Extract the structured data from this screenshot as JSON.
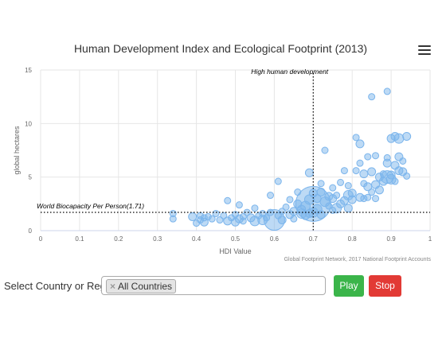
{
  "chart_data": {
    "type": "scatter",
    "title": "Human Development Index and Ecological Footprint (2013)",
    "xlabel": "HDI Value",
    "ylabel": "global hectares",
    "xlim": [
      0,
      1
    ],
    "ylim": [
      0,
      15
    ],
    "x_ticks": [
      "0",
      "0.1",
      "0.2",
      "0.3",
      "0.4",
      "0.5",
      "0.6",
      "0.7",
      "0.8",
      "0.9",
      "1"
    ],
    "y_ticks": [
      "0",
      "5",
      "10",
      "15"
    ],
    "grid": true,
    "credits": "Global Footprint Network, 2017 National Footprint Accounts",
    "reference_lines": [
      {
        "orientation": "horizontal",
        "value": 1.71,
        "label": "World Biocapacity Per Person(1.71)"
      },
      {
        "orientation": "vertical",
        "value": 0.7,
        "label": "High human development"
      }
    ],
    "series": [
      {
        "color": "#7cb5ec",
        "points": [
          [
            0.34,
            1.6,
            4
          ],
          [
            0.34,
            1.1,
            4
          ],
          [
            0.39,
            1.3,
            5
          ],
          [
            0.4,
            0.7,
            4
          ],
          [
            0.41,
            1.4,
            4
          ],
          [
            0.41,
            1.0,
            4
          ],
          [
            0.42,
            0.8,
            5
          ],
          [
            0.42,
            1.2,
            4
          ],
          [
            0.43,
            1.3,
            4
          ],
          [
            0.44,
            1.1,
            4
          ],
          [
            0.45,
            1.6,
            4
          ],
          [
            0.46,
            1.0,
            4
          ],
          [
            0.47,
            1.4,
            4
          ],
          [
            0.48,
            0.9,
            5
          ],
          [
            0.48,
            2.8,
            4
          ],
          [
            0.49,
            1.2,
            4
          ],
          [
            0.5,
            0.8,
            5
          ],
          [
            0.5,
            1.5,
            4
          ],
          [
            0.51,
            1.1,
            5
          ],
          [
            0.51,
            2.4,
            4
          ],
          [
            0.52,
            1.3,
            4
          ],
          [
            0.52,
            0.9,
            4
          ],
          [
            0.53,
            1.7,
            4
          ],
          [
            0.54,
            1.2,
            5
          ],
          [
            0.55,
            0.9,
            6
          ],
          [
            0.55,
            2.1,
            4
          ],
          [
            0.56,
            1.4,
            4
          ],
          [
            0.57,
            1.0,
            6
          ],
          [
            0.57,
            1.6,
            4
          ],
          [
            0.58,
            1.2,
            4
          ],
          [
            0.59,
            3.3,
            4
          ],
          [
            0.59,
            1.7,
            4
          ],
          [
            0.6,
            1.0,
            13
          ],
          [
            0.61,
            1.4,
            4
          ],
          [
            0.61,
            4.6,
            4
          ],
          [
            0.62,
            1.8,
            4
          ],
          [
            0.62,
            1.0,
            5
          ],
          [
            0.63,
            2.2,
            4
          ],
          [
            0.64,
            1.5,
            5
          ],
          [
            0.64,
            2.9,
            4
          ],
          [
            0.65,
            1.8,
            5
          ],
          [
            0.65,
            1.1,
            4
          ],
          [
            0.66,
            2.5,
            5
          ],
          [
            0.66,
            3.6,
            4
          ],
          [
            0.67,
            1.6,
            6
          ],
          [
            0.67,
            2.0,
            5
          ],
          [
            0.68,
            2.3,
            6
          ],
          [
            0.68,
            1.4,
            5
          ],
          [
            0.69,
            1.6,
            5
          ],
          [
            0.69,
            5.4,
            5
          ],
          [
            0.69,
            2.9,
            6
          ],
          [
            0.7,
            2.5,
            22
          ],
          [
            0.7,
            1.7,
            6
          ],
          [
            0.7,
            3.5,
            5
          ],
          [
            0.71,
            3.0,
            5
          ],
          [
            0.71,
            2.0,
            6
          ],
          [
            0.72,
            4.4,
            4
          ],
          [
            0.72,
            1.5,
            5
          ],
          [
            0.72,
            3.6,
            5
          ],
          [
            0.73,
            2.7,
            6
          ],
          [
            0.73,
            7.5,
            4
          ],
          [
            0.74,
            2.3,
            4
          ],
          [
            0.74,
            3.2,
            5
          ],
          [
            0.75,
            1.9,
            4
          ],
          [
            0.75,
            4.0,
            4
          ],
          [
            0.75,
            3.0,
            5
          ],
          [
            0.76,
            2.1,
            6
          ],
          [
            0.76,
            3.3,
            4
          ],
          [
            0.77,
            2.5,
            5
          ],
          [
            0.77,
            4.5,
            4
          ],
          [
            0.78,
            2.8,
            5
          ],
          [
            0.78,
            5.6,
            4
          ],
          [
            0.79,
            3.3,
            6
          ],
          [
            0.79,
            2.1,
            5
          ],
          [
            0.79,
            4.2,
            4
          ],
          [
            0.8,
            2.9,
            5
          ],
          [
            0.8,
            3.5,
            5
          ],
          [
            0.81,
            5.6,
            4
          ],
          [
            0.81,
            8.7,
            4
          ],
          [
            0.82,
            3.1,
            5
          ],
          [
            0.82,
            6.3,
            4
          ],
          [
            0.82,
            8.1,
            5
          ],
          [
            0.83,
            4.4,
            4
          ],
          [
            0.83,
            5.3,
            5
          ],
          [
            0.83,
            3.0,
            4
          ],
          [
            0.84,
            6.9,
            4
          ],
          [
            0.84,
            4.1,
            5
          ],
          [
            0.84,
            3.1,
            4
          ],
          [
            0.85,
            5.5,
            5
          ],
          [
            0.85,
            3.6,
            4
          ],
          [
            0.85,
            12.5,
            4
          ],
          [
            0.86,
            4.3,
            5
          ],
          [
            0.86,
            3.0,
            4
          ],
          [
            0.86,
            7.0,
            4
          ],
          [
            0.87,
            5.0,
            5
          ],
          [
            0.87,
            3.8,
            5
          ],
          [
            0.88,
            4.6,
            5
          ],
          [
            0.88,
            5.3,
            4
          ],
          [
            0.89,
            6.3,
            5
          ],
          [
            0.89,
            6.8,
            4
          ],
          [
            0.89,
            13.0,
            4
          ],
          [
            0.89,
            5.0,
            8
          ],
          [
            0.9,
            4.8,
            6
          ],
          [
            0.9,
            5.2,
            5
          ],
          [
            0.9,
            8.6,
            5
          ],
          [
            0.91,
            6.1,
            5
          ],
          [
            0.91,
            8.8,
            5
          ],
          [
            0.91,
            4.6,
            4
          ],
          [
            0.92,
            5.6,
            5
          ],
          [
            0.92,
            6.9,
            5
          ],
          [
            0.92,
            8.6,
            6
          ],
          [
            0.93,
            5.5,
            5
          ],
          [
            0.93,
            6.5,
            4
          ],
          [
            0.94,
            5.1,
            4
          ],
          [
            0.94,
            8.8,
            5
          ]
        ]
      }
    ]
  },
  "ui": {
    "menu_icon": "hamburger-menu-icon",
    "select_label": "Select Country or Region:",
    "selected_chip": "All Countries",
    "chip_remove_symbol": "×",
    "play_label": "Play",
    "stop_label": "Stop",
    "colors": {
      "bubble": "#7cb5ec",
      "play": "#3bb54a",
      "stop": "#e23a35"
    }
  }
}
